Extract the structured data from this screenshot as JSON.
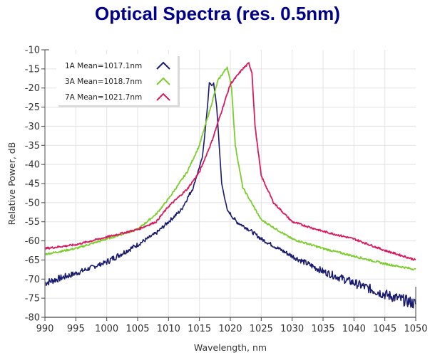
{
  "chart_data": {
    "type": "line",
    "title": "Optical Spectra (res. 0.5nm)",
    "xlabel": "Wavelength, nm",
    "ylabel": "Relative Power, dB",
    "xlim": [
      990,
      1050
    ],
    "ylim": [
      -80,
      -10
    ],
    "xticks": [
      990,
      995,
      1000,
      1005,
      1010,
      1015,
      1020,
      1025,
      1030,
      1035,
      1040,
      1045,
      1050
    ],
    "yticks": [
      -10,
      -15,
      -20,
      -25,
      -30,
      -35,
      -40,
      -45,
      -50,
      -55,
      -60,
      -65,
      -70,
      -75,
      -80
    ],
    "grid": true,
    "legend_position": "top-left",
    "series": [
      {
        "name": "1A Mean=1017.1nm",
        "color": "#1a1a6e",
        "noisy": true,
        "x": [
          990,
          995,
          1000,
          1005,
          1008,
          1010,
          1012,
          1014,
          1015.5,
          1016.3,
          1016.6,
          1017.0,
          1017.3,
          1017.8,
          1018.2,
          1018.6,
          1019.5,
          1021,
          1023,
          1025,
          1030,
          1035,
          1040,
          1045,
          1050
        ],
        "y": [
          -71,
          -68.5,
          -65.5,
          -61,
          -58,
          -55,
          -52,
          -46,
          -38,
          -25,
          -18.5,
          -19.5,
          -18.7,
          -25,
          -35,
          -45,
          -52,
          -55,
          -57,
          -59.5,
          -64,
          -68,
          -71,
          -74,
          -76.5
        ]
      },
      {
        "name": "3A Mean=1018.7nm",
        "color": "#7ccd2e",
        "noisy": false,
        "x": [
          990,
          995,
          1000,
          1005,
          1008,
          1010,
          1013,
          1015,
          1017,
          1018,
          1019.5,
          1020.2,
          1020.8,
          1022,
          1025,
          1030,
          1035,
          1040,
          1045,
          1050
        ],
        "y": [
          -63.5,
          -62,
          -59.5,
          -57,
          -53,
          -49,
          -42,
          -35,
          -24,
          -18,
          -14.5,
          -20,
          -35,
          -46,
          -54.5,
          -59.5,
          -62,
          -64,
          -66,
          -67.5
        ]
      },
      {
        "name": "7A Mean=1021.7nm",
        "color": "#d81b60",
        "noisy": false,
        "x": [
          990,
          995,
          1000,
          1005,
          1008,
          1010,
          1013,
          1015,
          1017,
          1019,
          1020,
          1022,
          1023,
          1023.5,
          1024,
          1025,
          1027,
          1030,
          1035,
          1040,
          1045,
          1050
        ],
        "y": [
          -62,
          -61,
          -59,
          -57,
          -55,
          -51,
          -46.5,
          -42,
          -34,
          -24,
          -19,
          -15,
          -13.5,
          -16,
          -30,
          -43,
          -50,
          -55,
          -57.5,
          -59.5,
          -62.5,
          -65
        ]
      }
    ]
  }
}
